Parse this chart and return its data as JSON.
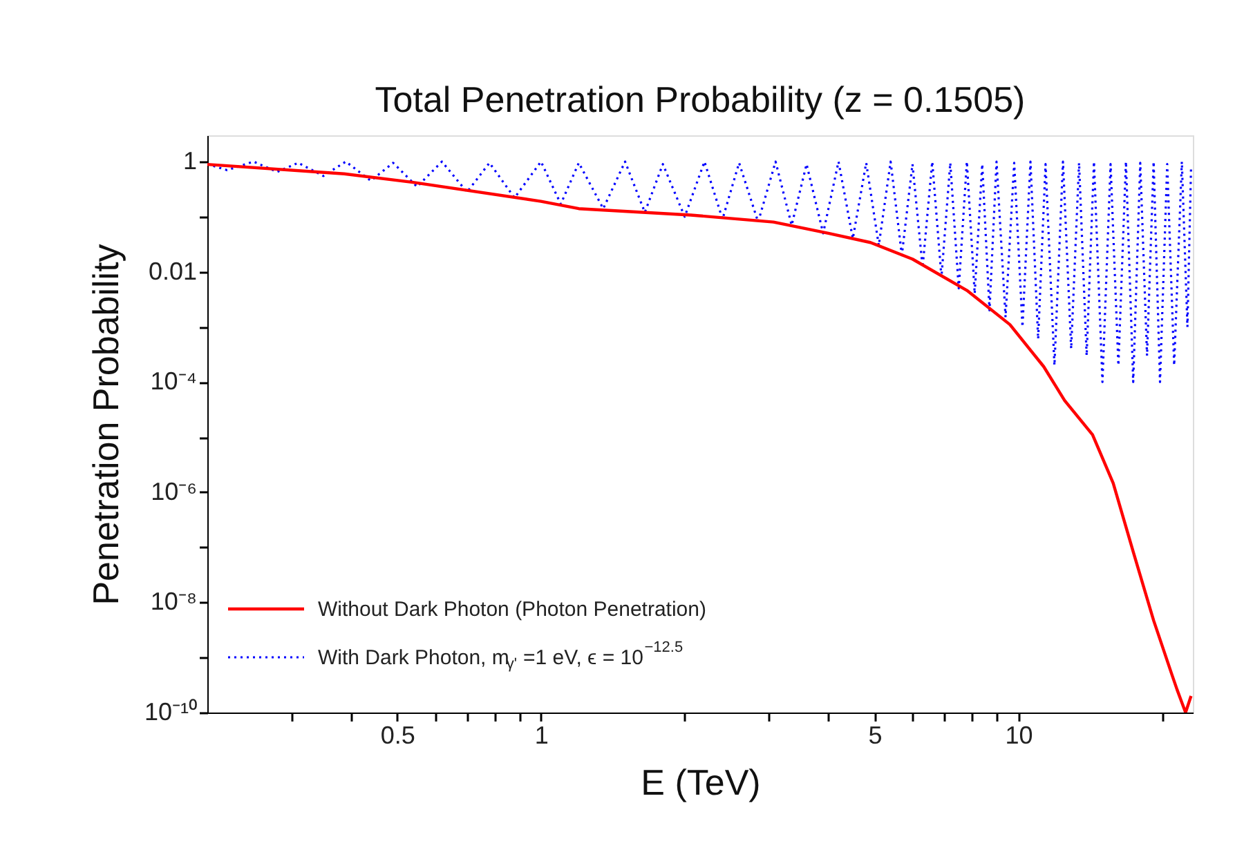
{
  "chart_data": {
    "type": "line",
    "title": "Total Penetration Probability (z = 0.1505)",
    "xlabel": "E (TeV)",
    "ylabel": "Penetration Probability",
    "log": "xy",
    "grid": false,
    "legend": "bottom left",
    "xlim": [
      0.2,
      23.2
    ],
    "ylim": [
      1e-10,
      3
    ],
    "xticks": [
      {
        "value": 0.3,
        "label": null
      },
      {
        "value": 0.4,
        "label": null
      },
      0.5,
      {
        "value": 0.6,
        "label": null
      },
      {
        "value": 0.7,
        "label": null
      },
      {
        "value": 0.8,
        "label": null
      },
      {
        "value": 0.9,
        "label": null
      },
      1,
      {
        "value": 2,
        "label": null
      },
      {
        "value": 3,
        "label": null
      },
      {
        "value": 4,
        "label": null
      },
      5,
      {
        "value": 6,
        "label": null
      },
      {
        "value": 7,
        "label": null
      },
      {
        "value": 8,
        "label": null
      },
      {
        "value": 9,
        "label": null
      },
      10,
      {
        "value": 20,
        "label": null
      }
    ],
    "yticks": [
      {
        "value": 1e-10,
        "label": "10⁻¹⁰"
      },
      {
        "value": 1e-09,
        "label": null
      },
      {
        "value": 1e-08,
        "label": "10⁻⁸"
      },
      {
        "value": 1e-07,
        "label": null
      },
      {
        "value": 1e-06,
        "label": "10⁻⁶"
      },
      {
        "value": 1e-05,
        "label": null
      },
      {
        "value": 0.0001,
        "label": "10⁻⁴"
      },
      {
        "value": 0.001,
        "label": null
      },
      0.01,
      {
        "value": 0.1,
        "label": null
      },
      1
    ],
    "series": [
      {
        "name": "With Dark Photon, m$_{γ'}$=1 eV, ϵ = 10$^{−12.5}$",
        "color": "#0000ff",
        "line_style": "dotted",
        "x": [
          0.2,
          0.22,
          0.25,
          0.28,
          0.31,
          0.35,
          0.39,
          0.44,
          0.49,
          0.55,
          0.62,
          0.7,
          0.78,
          0.88,
          1.0,
          1.1,
          1.2,
          1.35,
          1.5,
          1.65,
          1.8,
          2.0,
          2.2,
          2.4,
          2.6,
          2.85,
          3.1,
          3.35,
          3.6,
          3.9,
          4.2,
          4.5,
          4.8,
          5.1,
          5.4,
          5.7,
          6.0,
          6.3,
          6.6,
          6.9,
          7.2,
          7.5,
          7.8,
          8.1,
          8.4,
          8.7,
          9.0,
          9.4,
          9.8,
          10.2,
          10.6,
          11.0,
          11.4,
          11.9,
          12.4,
          12.9,
          13.4,
          13.9,
          14.4,
          15.0,
          15.6,
          16.2,
          16.8,
          17.4,
          18.0,
          18.6,
          19.2,
          19.8,
          20.5,
          21.2,
          22.0,
          22.6,
          23.0
        ],
        "values": [
          0.9,
          0.7,
          1.0,
          0.65,
          0.95,
          0.55,
          1.0,
          0.45,
          0.95,
          0.35,
          1.0,
          0.28,
          0.95,
          0.22,
          1.0,
          0.17,
          0.95,
          0.14,
          1.0,
          0.12,
          0.9,
          0.1,
          1.0,
          0.09,
          0.95,
          0.08,
          1.0,
          0.07,
          0.9,
          0.05,
          1.0,
          0.04,
          0.95,
          0.03,
          1.0,
          0.02,
          0.9,
          0.012,
          1.0,
          0.008,
          0.95,
          0.005,
          1.0,
          0.004,
          0.9,
          0.002,
          1.0,
          0.0015,
          0.95,
          0.001,
          1.0,
          0.0006,
          0.9,
          0.0002,
          1.0,
          0.0004,
          0.95,
          0.0003,
          1.0,
          0.0001,
          0.9,
          0.0002,
          1.0,
          0.0001,
          0.95,
          0.0003,
          1.0,
          0.0001,
          0.9,
          0.0002,
          1.0,
          0.001,
          0.8
        ]
      },
      {
        "name": "Without Dark Photon (Photon Penetration)",
        "color": "#ff0000",
        "line_style": "solid",
        "x": [
          0.2,
          0.387,
          0.54,
          1.0,
          1.2,
          2.06,
          3.07,
          4.0,
          4.9,
          6.0,
          7.8,
          9.6,
          11.3,
          12.5,
          14.3,
          15.8,
          17.4,
          19.2,
          21.0,
          21.5,
          22.4,
          23.0
        ],
        "values": [
          0.89,
          0.6,
          0.42,
          0.19,
          0.14,
          0.107,
          0.08,
          0.05,
          0.034,
          0.017,
          0.0046,
          0.0011,
          0.00019,
          4.6e-05,
          1.1e-05,
          1.45e-06,
          8.3e-08,
          4.7e-09,
          4.7e-10,
          2.6e-10,
          1e-10,
          2e-10
        ]
      }
    ]
  }
}
